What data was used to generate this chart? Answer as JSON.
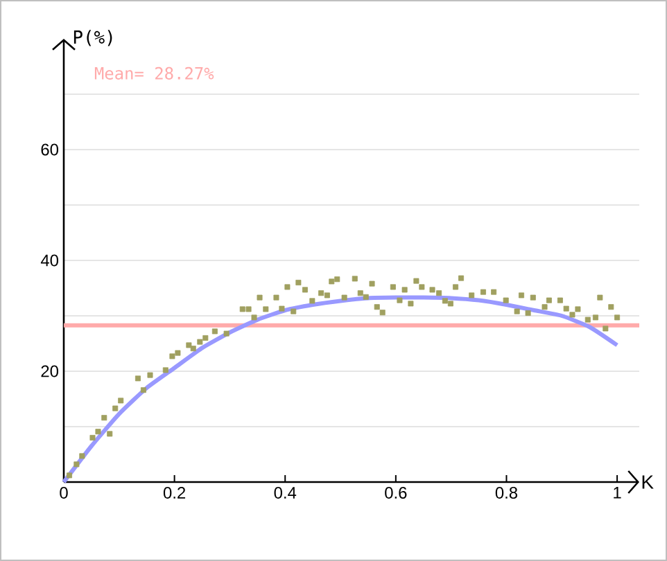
{
  "chart_data": {
    "type": "scatter",
    "xlabel": "K",
    "ylabel": "P(%)",
    "xlim": [
      0,
      1.04
    ],
    "ylim": [
      0,
      80
    ],
    "xticks": [
      0,
      0.2,
      0.4,
      0.6,
      0.8,
      1
    ],
    "yticks": [
      {
        "value": 10,
        "label": null
      },
      20,
      {
        "value": 30,
        "label": null
      },
      40,
      {
        "value": 50,
        "label": null
      },
      60,
      {
        "value": 70,
        "label": null
      }
    ],
    "grid": "y",
    "ref_lines": [
      {
        "axis": "y",
        "value": 28.27,
        "label": "Mean= 28.27%",
        "color": "#ffaaaa"
      }
    ],
    "series": [
      {
        "color": "#a0a060",
        "marker": "square",
        "x": [
          0.01,
          0.023,
          0.033,
          0.052,
          0.062,
          0.073,
          0.083,
          0.093,
          0.103,
          0.134,
          0.144,
          0.156,
          0.184,
          0.196,
          0.206,
          0.226,
          0.234,
          0.246,
          0.256,
          0.273,
          0.294,
          0.323,
          0.334,
          0.344,
          0.354,
          0.365,
          0.384,
          0.394,
          0.404,
          0.415,
          0.424,
          0.436,
          0.449,
          0.465,
          0.476,
          0.484,
          0.494,
          0.507,
          0.526,
          0.536,
          0.546,
          0.557,
          0.566,
          0.576,
          0.595,
          0.607,
          0.616,
          0.627,
          0.637,
          0.647,
          0.666,
          0.678,
          0.689,
          0.699,
          0.708,
          0.718,
          0.737,
          0.758,
          0.777,
          0.799,
          0.819,
          0.827,
          0.839,
          0.848,
          0.869,
          0.877,
          0.897,
          0.908,
          0.919,
          0.929,
          0.947,
          0.961,
          0.969,
          0.979,
          0.989,
          1.0
        ],
        "values": [
          1.2,
          3.2,
          4.7,
          8,
          9.1,
          11.6,
          8.7,
          13.3,
          14.7,
          18.7,
          16.6,
          19.3,
          20.2,
          22.7,
          23.3,
          24.7,
          24.1,
          25.3,
          26,
          27.2,
          26.8,
          31.2,
          31.2,
          29.7,
          33.3,
          31.2,
          33.3,
          31.3,
          35.2,
          30.8,
          36,
          34.7,
          32.7,
          34.1,
          33.7,
          36.2,
          36.6,
          33.3,
          36.7,
          34.1,
          33.4,
          35.8,
          31.6,
          30.6,
          35.2,
          32.8,
          34.7,
          32.2,
          36.3,
          35.2,
          34.7,
          34.1,
          32.7,
          32.2,
          35.2,
          36.8,
          33.7,
          34.3,
          34.3,
          32.8,
          30.8,
          33.7,
          30.5,
          33.3,
          31.6,
          32.8,
          32.8,
          31.3,
          30.2,
          31.2,
          29.3,
          29.7,
          33.3,
          27.7,
          31.6,
          29.7
        ]
      },
      {
        "type": "line",
        "color": "#9999ff",
        "marker": "none",
        "x": [
          0,
          0.05,
          0.1,
          0.15,
          0.2,
          0.25,
          0.3,
          0.35,
          0.4,
          0.45,
          0.5,
          0.55,
          0.6,
          0.65,
          0.7,
          0.75,
          0.8,
          0.85,
          0.9,
          0.95,
          1.0
        ],
        "values": [
          0,
          6.5,
          12.3,
          17,
          20.6,
          24.2,
          27,
          29.3,
          31,
          32,
          32.7,
          33.2,
          33.3,
          33.3,
          33.2,
          32.8,
          32,
          31,
          30,
          28,
          24.7
        ]
      }
    ]
  }
}
